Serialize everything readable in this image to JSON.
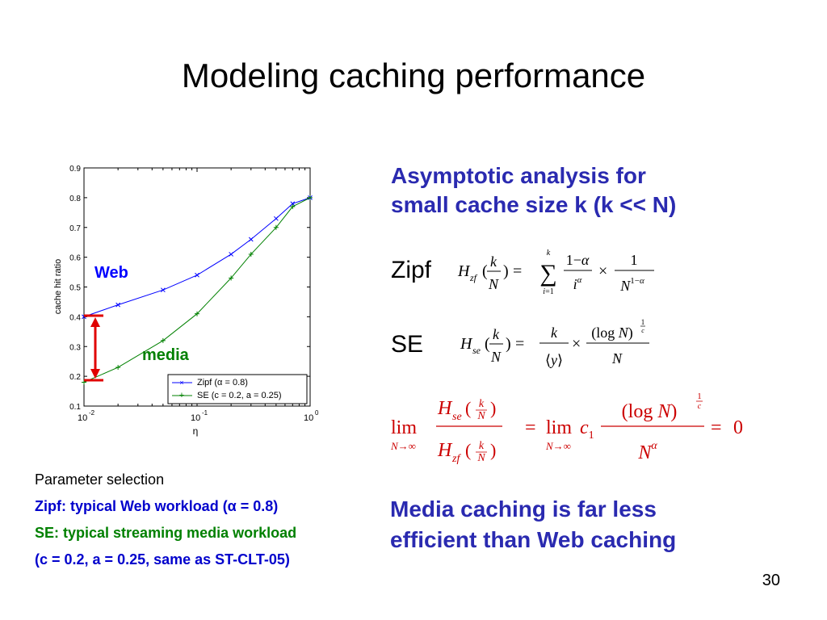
{
  "slide": {
    "title": "Modeling caching performance",
    "page_number": "30"
  },
  "right_panel": {
    "heading_line1": "Asymptotic analysis for",
    "heading_line2": "small cache size k (k << N)",
    "zipf_label": "Zipf",
    "se_label": "SE",
    "conclusion_line1": "Media caching is far less",
    "conclusion_line2": "efficient than Web caching"
  },
  "formulas": {
    "zipf": "H_zf(k/N) = Σ_{i=1}^{k} (1−α)/i^α × 1/N^(1−α)",
    "se": "H_se(k/N) = k/⟨y⟩ × (log N)^(1/c)/N",
    "limit": "lim_{N→∞} H_se(k/N)/H_zf(k/N) = lim_{N→∞} c_1 (log N)^(1/c)/N^α = 0"
  },
  "params": {
    "line1": "Parameter selection",
    "line2": "Zipf: typical Web workload (α = 0.8)",
    "line3": "SE: typical streaming media workload",
    "line4": "(c = 0.2, a = 0.25, same as ST-CLT-05)"
  },
  "annotations": {
    "web": "Web",
    "media": "media"
  },
  "colors": {
    "heading": "#2a2ab0",
    "zipf_series": "#0000ff",
    "se_series": "#008000",
    "formula_red": "#cc0000",
    "arrow": "#e00000"
  },
  "chart_data": {
    "type": "line",
    "xscale": "log",
    "xlabel": "η",
    "ylabel": "cache hit ratio",
    "xlim": [
      0.01,
      1
    ],
    "ylim": [
      0.1,
      0.9
    ],
    "x_ticks": [
      {
        "base": "10",
        "exp": "-2"
      },
      {
        "base": "10",
        "exp": "-1"
      },
      {
        "base": "10",
        "exp": "0"
      }
    ],
    "y_ticks": [
      "0.1",
      "0.2",
      "0.3",
      "0.4",
      "0.5",
      "0.6",
      "0.7",
      "0.8",
      "0.9"
    ],
    "legend_position": "bottom-right",
    "grid": false,
    "series": [
      {
        "name": "Zipf (α = 0.8)",
        "marker": "x",
        "x": [
          0.01,
          0.02,
          0.05,
          0.1,
          0.2,
          0.3,
          0.5,
          0.7,
          1.0
        ],
        "y": [
          0.4,
          0.44,
          0.49,
          0.54,
          0.61,
          0.66,
          0.73,
          0.78,
          0.8
        ]
      },
      {
        "name": "SE (c = 0.2, a = 0.25)",
        "marker": "+",
        "x": [
          0.01,
          0.02,
          0.05,
          0.1,
          0.2,
          0.3,
          0.5,
          0.7,
          1.0
        ],
        "y": [
          0.18,
          0.23,
          0.32,
          0.41,
          0.53,
          0.61,
          0.7,
          0.77,
          0.8
        ]
      }
    ]
  }
}
